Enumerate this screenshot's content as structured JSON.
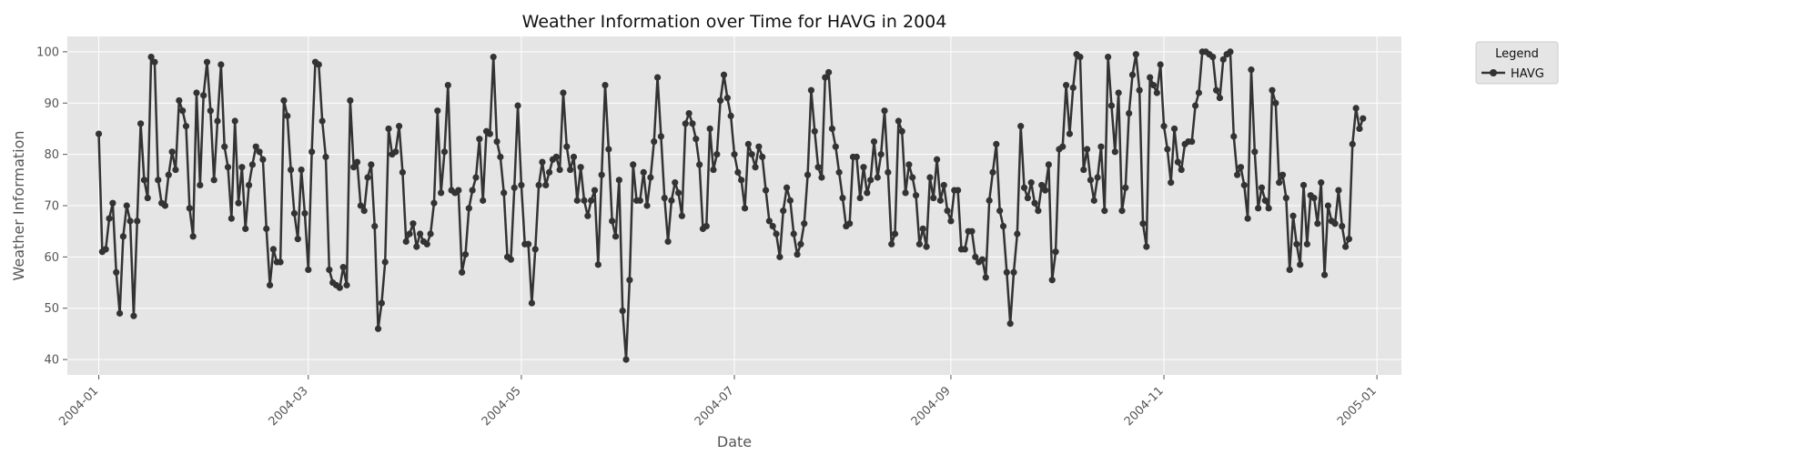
{
  "chart_data": {
    "type": "line",
    "title": "Weather Information over Time for HAVG in 2004",
    "xlabel": "Date",
    "ylabel": "Weather Information",
    "x_ticks": [
      "2004-01",
      "2004-03",
      "2004-05",
      "2004-07",
      "2004-09",
      "2004-11",
      "2005-01"
    ],
    "y_ticks": [
      "40",
      "50",
      "60",
      "70",
      "80",
      "90",
      "100"
    ],
    "xlim": [
      "2003-12-23",
      "2005-01-08"
    ],
    "ylim": [
      37,
      103
    ],
    "grid": true,
    "legend": {
      "title": "Legend",
      "placement": "outside-right-top"
    },
    "colors": {
      "series": "#333333",
      "plot_bg": "#e5e5e5",
      "grid": "#ffffff"
    },
    "start_date": "2004-01-01",
    "series": [
      {
        "name": "HAVG",
        "values": [
          84,
          61,
          61.5,
          67.5,
          70.5,
          57,
          49,
          64,
          70,
          67,
          48.5,
          67,
          86,
          75,
          71.5,
          99,
          98,
          75,
          70.5,
          70,
          76,
          80.5,
          77,
          90.5,
          88.5,
          85.5,
          69.5,
          64,
          92,
          74,
          91.5,
          98,
          88.5,
          75,
          86.5,
          97.5,
          81.5,
          77.5,
          67.5,
          86.5,
          70.5,
          77.5,
          65.5,
          74,
          78,
          81.5,
          80.5,
          79,
          65.5,
          54.5,
          61.5,
          59,
          59,
          90.5,
          87.5,
          77,
          68.5,
          63.5,
          77,
          68.5,
          57.5,
          80.5,
          98,
          97.5,
          86.5,
          79.5,
          57.5,
          55,
          54.5,
          54,
          58,
          54.5,
          90.5,
          77.5,
          78.5,
          70,
          69,
          75.5,
          78,
          66,
          46,
          51,
          59,
          85,
          80,
          80.5,
          85.5,
          76.5,
          63,
          64.5,
          66.5,
          62,
          64.5,
          63,
          62.5,
          64.5,
          70.5,
          88.5,
          72.5,
          80.5,
          93.5,
          73,
          72.5,
          73,
          57,
          60.5,
          69.5,
          73,
          75.5,
          83,
          71,
          84.5,
          84,
          99,
          82.5,
          79.5,
          72.5,
          60,
          59.5,
          73.5,
          89.5,
          74,
          62.5,
          62.5,
          51,
          61.5,
          74,
          78.5,
          74,
          76.5,
          79,
          79.5,
          77,
          92,
          81.5,
          77,
          79.5,
          71,
          77.5,
          71,
          68,
          71,
          73,
          58.5,
          76,
          93.5,
          81,
          67,
          64,
          75,
          49.5,
          40,
          55.5,
          78,
          71,
          71,
          76.5,
          70,
          75.5,
          82.5,
          95,
          83.5,
          71.5,
          63,
          71,
          74.5,
          72.5,
          68,
          86,
          88,
          86,
          83,
          78,
          65.5,
          66,
          85,
          77,
          80,
          90.5,
          95.5,
          91,
          87.5,
          80,
          76.5,
          75,
          69.5,
          82,
          80,
          77.5,
          81.5,
          79.5,
          73,
          67,
          66,
          64.5,
          60,
          69,
          73.5,
          71,
          64.5,
          60.5,
          62.5,
          66.5,
          76,
          92.5,
          84.5,
          77.5,
          75.5,
          95,
          96,
          85,
          81.5,
          76.5,
          71.5,
          66,
          66.5,
          79.5,
          79.5,
          71.5,
          77.5,
          72.5,
          75,
          82.5,
          75.5,
          80,
          88.5,
          76.5,
          62.5,
          64.5,
          86.5,
          84.5,
          72.5,
          78,
          75.5,
          72,
          62.5,
          65.5,
          62,
          75.5,
          71.5,
          79,
          71,
          74,
          69,
          67,
          73,
          73,
          61.5,
          61.5,
          65,
          65,
          60,
          59,
          59.5,
          56,
          71,
          76.5,
          82,
          69,
          66,
          57,
          47,
          57,
          64.5,
          85.5,
          73.5,
          71.5,
          74.5,
          70.5,
          69,
          74,
          73,
          78,
          55.5,
          61,
          81,
          81.5,
          93.5,
          84,
          93,
          99.5,
          99,
          77,
          81,
          75,
          71,
          75.5,
          81.5,
          69,
          99,
          89.5,
          80.5,
          92,
          69,
          73.5,
          88,
          95.5,
          99.5,
          92.5,
          66.5,
          62,
          95,
          93.5,
          92,
          97.5,
          85.5,
          81,
          74.5,
          85,
          78.5,
          77,
          82,
          82.5,
          82.5,
          89.5,
          92,
          100,
          100,
          99.5,
          99,
          92.5,
          91,
          98.5,
          99.5,
          100,
          83.5,
          76,
          77.5,
          74,
          67.5,
          96.5,
          80.5,
          69.5,
          73.5,
          71,
          69.5,
          92.5,
          90,
          74.5,
          76,
          71.5,
          57.5,
          68,
          62.5,
          58.5,
          74,
          62.5,
          72,
          71.5,
          66.5,
          74.5,
          56.5,
          70,
          67,
          66.5,
          73,
          66,
          62,
          63.5,
          82,
          89,
          85,
          87
        ]
      }
    ]
  }
}
